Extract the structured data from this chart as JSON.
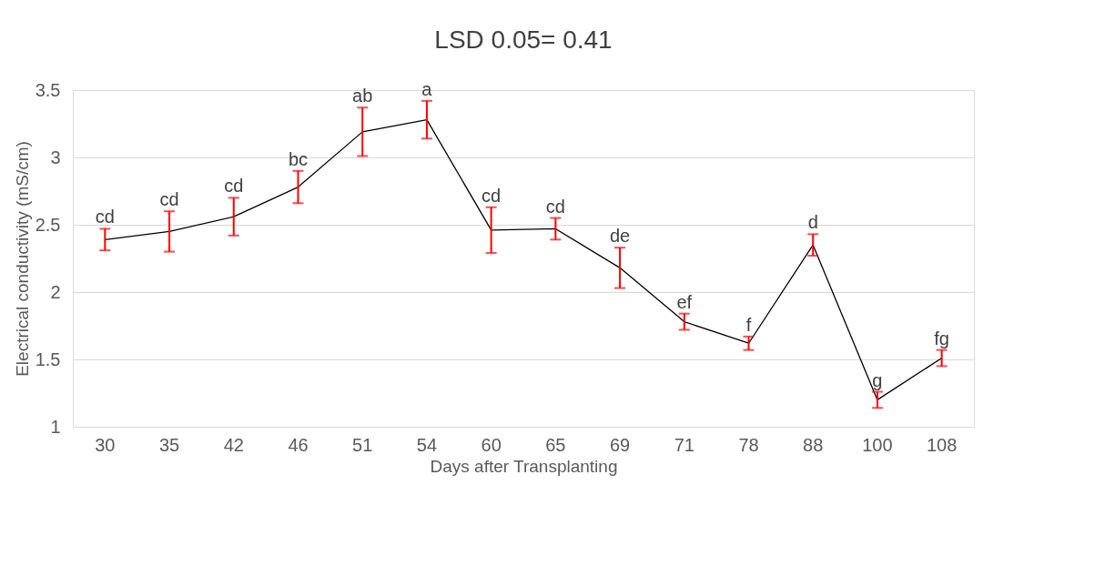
{
  "chart_data": {
    "type": "line",
    "title": "LSD 0.05= 0.41",
    "xlabel": "Days after Transplanting",
    "ylabel": "Electrical conductivity (mS/cm)",
    "categories": [
      "30",
      "35",
      "42",
      "46",
      "51",
      "54",
      "60",
      "65",
      "69",
      "71",
      "78",
      "88",
      "100",
      "108"
    ],
    "series": [
      {
        "color": "#000000",
        "values": [
          2.39,
          2.45,
          2.56,
          2.78,
          3.19,
          3.28,
          2.46,
          2.47,
          2.18,
          1.78,
          1.62,
          2.35,
          1.2,
          1.51
        ],
        "errors": [
          0.08,
          0.15,
          0.14,
          0.12,
          0.18,
          0.14,
          0.17,
          0.08,
          0.15,
          0.06,
          0.05,
          0.08,
          0.06,
          0.06
        ]
      }
    ],
    "ylim": [
      1,
      3.5
    ],
    "yticks": [
      1,
      1.5,
      2,
      2.5,
      3,
      3.5
    ],
    "grid": "y",
    "marker": "none",
    "line_style": "solid",
    "annotations": [
      {
        "text": "cd",
        "x": "30",
        "y": 2.47
      },
      {
        "text": "cd",
        "x": "35",
        "y": 2.6
      },
      {
        "text": "cd",
        "x": "42",
        "y": 2.7
      },
      {
        "text": "bc",
        "x": "46",
        "y": 2.9
      },
      {
        "text": "ab",
        "x": "51",
        "y": 3.37
      },
      {
        "text": "a",
        "x": "54",
        "y": 3.42
      },
      {
        "text": "cd",
        "x": "60",
        "y": 2.63
      },
      {
        "text": "cd",
        "x": "65",
        "y": 2.55
      },
      {
        "text": "de",
        "x": "69",
        "y": 2.33
      },
      {
        "text": "ef",
        "x": "71",
        "y": 1.84
      },
      {
        "text": "f",
        "x": "78",
        "y": 1.67
      },
      {
        "text": "d",
        "x": "88",
        "y": 2.43
      },
      {
        "text": "g",
        "x": "100",
        "y": 1.26
      },
      {
        "text": "fg",
        "x": "108",
        "y": 1.57
      }
    ]
  }
}
